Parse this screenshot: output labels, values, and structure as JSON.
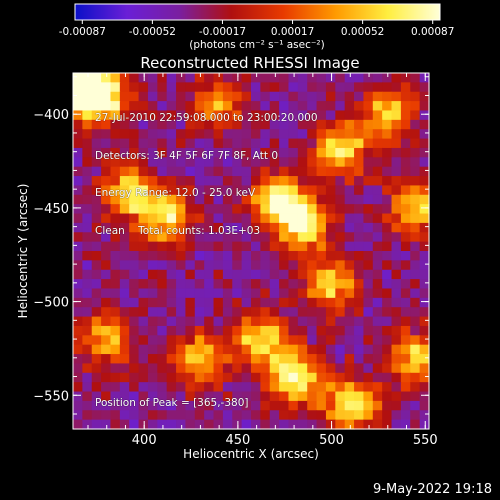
{
  "chart_data": {
    "type": "heatmap",
    "title": "Reconstructed RHESSI Image",
    "xlabel": "Heliocentric X (arcsec)",
    "ylabel": "Heliocentric Y (arcsec)",
    "xlim": [
      362,
      552
    ],
    "ylim": [
      -568,
      -378
    ],
    "xticks": [
      400,
      450,
      500,
      550
    ],
    "yticks": [
      -400,
      -450,
      -500,
      -550
    ],
    "colorbar": {
      "ticks": [
        "-0.00087",
        "-0.00052",
        "-0.00017",
        "0.00017",
        "0.00052",
        "0.00087"
      ],
      "range": [
        -0.00087,
        0.00087
      ],
      "unit_label": "(photons cm⁻² s⁻¹ asec⁻²)",
      "colors": [
        "#0a10c8",
        "#6a1fd6",
        "#7a1fa0",
        "#b01010",
        "#e83a00",
        "#ff9a00",
        "#ffee40",
        "#ffffd8"
      ]
    },
    "annotations": {
      "time": "27-Jul-2010 22:59:08.000 to 23:00:20.000",
      "detectors": "Detectors: 3F 4F 5F 6F 7F 8F, Att 0",
      "energy": "Energy Range: 12.0 - 25.0 keV",
      "method": "Clean",
      "counts": "Total counts: 1.03E+03",
      "peak": "Position of Peak = [365,-380]"
    },
    "grid_size": [
      38,
      38
    ],
    "bright_features": [
      {
        "x": 366,
        "y": -384,
        "intensity": 1.0
      },
      {
        "x": 378,
        "y": -392,
        "intensity": 0.85
      },
      {
        "x": 392,
        "y": -442,
        "intensity": 0.7
      },
      {
        "x": 412,
        "y": -455,
        "intensity": 0.75
      },
      {
        "x": 470,
        "y": -445,
        "intensity": 0.8
      },
      {
        "x": 485,
        "y": -458,
        "intensity": 0.9
      },
      {
        "x": 505,
        "y": -420,
        "intensity": 0.75
      },
      {
        "x": 530,
        "y": -400,
        "intensity": 0.7
      },
      {
        "x": 545,
        "y": -450,
        "intensity": 0.7
      },
      {
        "x": 500,
        "y": -490,
        "intensity": 0.7
      },
      {
        "x": 462,
        "y": -520,
        "intensity": 0.75
      },
      {
        "x": 480,
        "y": -540,
        "intensity": 0.85
      },
      {
        "x": 510,
        "y": -555,
        "intensity": 0.8
      },
      {
        "x": 430,
        "y": -530,
        "intensity": 0.65
      },
      {
        "x": 380,
        "y": -520,
        "intensity": 0.6
      },
      {
        "x": 440,
        "y": -395,
        "intensity": 0.55
      },
      {
        "x": 545,
        "y": -530,
        "intensity": 0.65
      }
    ]
  },
  "footer": "9-May-2022 19:18"
}
